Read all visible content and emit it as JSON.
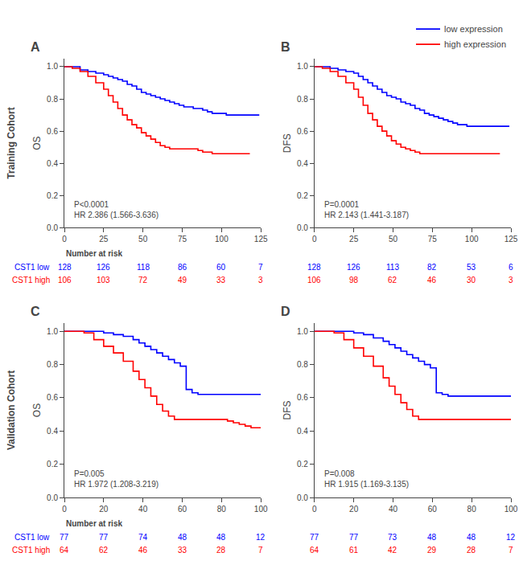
{
  "chart_data": [
    {
      "type": "step",
      "title": "A",
      "ylabel": "OS",
      "annotations": [
        "P<0.0001",
        "HR 2.386 (1.566-3.636)"
      ],
      "xlim": [
        0,
        125
      ],
      "xticks": [
        0,
        25,
        50,
        75,
        100,
        125
      ],
      "ylim": [
        0.0,
        1.05
      ],
      "yticks": [
        {
          "value": 0.0,
          "label": "0.0"
        },
        0.2,
        0.4,
        0.6,
        0.8,
        {
          "value": 1.0,
          "label": "1.0"
        }
      ],
      "grid": false,
      "series": [
        {
          "color": "#0000FF",
          "x": [
            0,
            5,
            10,
            15,
            20,
            25,
            28,
            31,
            34,
            37,
            40,
            43,
            46,
            49,
            52,
            55,
            58,
            61,
            64,
            67,
            70,
            73,
            76,
            79,
            82,
            85,
            88,
            91,
            94,
            97,
            100,
            103,
            106,
            109,
            112,
            115,
            118,
            121,
            124
          ],
          "values": [
            1.0,
            1.0,
            0.98,
            0.97,
            0.96,
            0.95,
            0.94,
            0.93,
            0.92,
            0.91,
            0.89,
            0.88,
            0.86,
            0.84,
            0.83,
            0.82,
            0.81,
            0.8,
            0.79,
            0.78,
            0.77,
            0.76,
            0.75,
            0.75,
            0.74,
            0.74,
            0.73,
            0.72,
            0.71,
            0.71,
            0.71,
            0.7,
            0.7,
            0.7,
            0.7,
            0.7,
            0.7,
            0.7,
            0.7
          ]
        },
        {
          "color": "#FF0000",
          "x": [
            0,
            5,
            10,
            15,
            20,
            25,
            28,
            31,
            34,
            37,
            40,
            43,
            46,
            49,
            52,
            55,
            58,
            61,
            64,
            67,
            70,
            73,
            76,
            79,
            82,
            85,
            88,
            91,
            94,
            97,
            100,
            103,
            106,
            109,
            112,
            115,
            118
          ],
          "values": [
            1.0,
            0.99,
            0.97,
            0.94,
            0.9,
            0.86,
            0.82,
            0.78,
            0.74,
            0.7,
            0.67,
            0.64,
            0.62,
            0.59,
            0.57,
            0.55,
            0.53,
            0.51,
            0.5,
            0.49,
            0.49,
            0.49,
            0.49,
            0.49,
            0.49,
            0.48,
            0.47,
            0.47,
            0.46,
            0.46,
            0.46,
            0.46,
            0.46,
            0.46,
            0.46,
            0.46,
            0.46
          ]
        }
      ],
      "risk_table": {
        "label": "Number at risk",
        "rows": [
          {
            "name": "CST1 low",
            "color": "#0000FF",
            "values": [
              128,
              126,
              118,
              86,
              60,
              7
            ]
          },
          {
            "name": "CST1 high",
            "color": "#FF0000",
            "values": [
              106,
              103,
              72,
              49,
              33,
              3
            ]
          }
        ]
      }
    },
    {
      "type": "step",
      "title": "B",
      "ylabel": "DFS",
      "annotations": [
        "P=0.0001",
        "HR 2.143 (1.441-3.187)"
      ],
      "xlim": [
        0,
        125
      ],
      "xticks": [
        0,
        25,
        50,
        75,
        100,
        125
      ],
      "ylim": [
        0.0,
        1.05
      ],
      "yticks": [
        {
          "value": 0.0,
          "label": "0.0"
        },
        0.2,
        0.4,
        0.6,
        0.8,
        {
          "value": 1.0,
          "label": "1.0"
        }
      ],
      "grid": false,
      "legend": "upper right",
      "series": [
        {
          "name": "low expression",
          "color": "#0000FF",
          "x": [
            0,
            5,
            10,
            15,
            20,
            25,
            28,
            31,
            34,
            37,
            40,
            43,
            46,
            49,
            52,
            55,
            58,
            61,
            64,
            67,
            70,
            73,
            76,
            79,
            82,
            85,
            88,
            91,
            94,
            97,
            100,
            103,
            106,
            109,
            112,
            115,
            118,
            121,
            124
          ],
          "values": [
            1.0,
            1.0,
            0.99,
            0.98,
            0.97,
            0.96,
            0.94,
            0.92,
            0.9,
            0.88,
            0.86,
            0.84,
            0.82,
            0.81,
            0.8,
            0.78,
            0.77,
            0.76,
            0.74,
            0.73,
            0.71,
            0.7,
            0.69,
            0.68,
            0.67,
            0.66,
            0.65,
            0.64,
            0.64,
            0.63,
            0.63,
            0.63,
            0.63,
            0.63,
            0.63,
            0.63,
            0.63,
            0.63,
            0.63
          ]
        },
        {
          "name": "high expression",
          "color": "#FF0000",
          "x": [
            0,
            5,
            10,
            15,
            20,
            25,
            28,
            31,
            34,
            37,
            40,
            43,
            46,
            49,
            52,
            55,
            58,
            61,
            64,
            67,
            70,
            73,
            76,
            79,
            82,
            85,
            88,
            91,
            94,
            97,
            100,
            103,
            106,
            109,
            112,
            115,
            118
          ],
          "values": [
            1.0,
            0.99,
            0.97,
            0.94,
            0.9,
            0.86,
            0.81,
            0.76,
            0.71,
            0.67,
            0.63,
            0.6,
            0.57,
            0.54,
            0.52,
            0.5,
            0.49,
            0.48,
            0.47,
            0.46,
            0.46,
            0.46,
            0.46,
            0.46,
            0.46,
            0.46,
            0.46,
            0.46,
            0.46,
            0.46,
            0.46,
            0.46,
            0.46,
            0.46,
            0.46,
            0.46,
            0.46
          ]
        }
      ],
      "risk_table": {
        "rows": [
          {
            "color": "#0000FF",
            "values": [
              128,
              126,
              113,
              82,
              53,
              6
            ]
          },
          {
            "color": "#FF0000",
            "values": [
              106,
              98,
              62,
              46,
              30,
              3
            ]
          }
        ]
      }
    },
    {
      "type": "step",
      "title": "C",
      "ylabel": "OS",
      "annotations": [
        "P=0.005",
        "HR 1.972 (1.208-3.219)"
      ],
      "xlim": [
        0,
        100
      ],
      "xticks": [
        0,
        20,
        40,
        60,
        80,
        100
      ],
      "ylim": [
        0.0,
        1.05
      ],
      "yticks": [
        {
          "value": 0.0,
          "label": "0.0"
        },
        0.2,
        0.4,
        0.6,
        0.8,
        {
          "value": 1.0,
          "label": "1.0"
        }
      ],
      "grid": false,
      "series": [
        {
          "color": "#0000FF",
          "x": [
            0,
            5,
            10,
            15,
            20,
            25,
            30,
            35,
            38,
            41,
            44,
            47,
            50,
            53,
            56,
            59,
            62,
            65,
            68,
            71,
            74,
            77,
            80,
            83,
            86,
            89,
            92,
            95,
            98,
            100
          ],
          "values": [
            1.0,
            1.0,
            1.0,
            1.0,
            0.99,
            0.98,
            0.97,
            0.95,
            0.93,
            0.91,
            0.89,
            0.87,
            0.85,
            0.83,
            0.81,
            0.79,
            0.65,
            0.63,
            0.62,
            0.62,
            0.62,
            0.62,
            0.62,
            0.62,
            0.62,
            0.62,
            0.62,
            0.62,
            0.62,
            0.62
          ]
        },
        {
          "color": "#FF0000",
          "x": [
            0,
            5,
            10,
            15,
            20,
            25,
            30,
            35,
            38,
            41,
            44,
            47,
            50,
            53,
            56,
            59,
            62,
            65,
            68,
            71,
            74,
            77,
            80,
            83,
            86,
            89,
            92,
            95,
            98,
            100
          ],
          "values": [
            1.0,
            1.0,
            0.99,
            0.95,
            0.91,
            0.87,
            0.82,
            0.76,
            0.71,
            0.66,
            0.61,
            0.56,
            0.52,
            0.49,
            0.47,
            0.47,
            0.47,
            0.47,
            0.47,
            0.47,
            0.47,
            0.47,
            0.47,
            0.46,
            0.45,
            0.44,
            0.43,
            0.42,
            0.42,
            0.42
          ]
        }
      ],
      "risk_table": {
        "label": "Number at risk",
        "rows": [
          {
            "name": "CST1 low",
            "color": "#0000FF",
            "values": [
              77,
              77,
              74,
              48,
              48,
              12
            ]
          },
          {
            "name": "CST1 high",
            "color": "#FF0000",
            "values": [
              64,
              62,
              46,
              33,
              28,
              7
            ]
          }
        ]
      }
    },
    {
      "type": "step",
      "title": "D",
      "ylabel": "DFS",
      "annotations": [
        "P=0.008",
        "HR 1.915 (1.169-3.135)"
      ],
      "xlim": [
        0,
        100
      ],
      "xticks": [
        0,
        20,
        40,
        60,
        80,
        100
      ],
      "ylim": [
        0.0,
        1.05
      ],
      "yticks": [
        {
          "value": 0.0,
          "label": "0.0"
        },
        0.2,
        0.4,
        0.6,
        0.8,
        {
          "value": 1.0,
          "label": "1.0"
        }
      ],
      "grid": false,
      "series": [
        {
          "color": "#0000FF",
          "x": [
            0,
            5,
            10,
            15,
            20,
            25,
            30,
            35,
            38,
            41,
            44,
            47,
            50,
            53,
            56,
            59,
            62,
            65,
            68,
            71,
            74,
            77,
            80,
            83,
            86,
            89,
            92,
            95,
            98,
            100
          ],
          "values": [
            1.0,
            1.0,
            1.0,
            1.0,
            0.99,
            0.98,
            0.96,
            0.94,
            0.92,
            0.9,
            0.88,
            0.86,
            0.84,
            0.82,
            0.8,
            0.78,
            0.63,
            0.62,
            0.61,
            0.61,
            0.61,
            0.61,
            0.61,
            0.61,
            0.61,
            0.61,
            0.61,
            0.61,
            0.61,
            0.61
          ]
        },
        {
          "color": "#FF0000",
          "x": [
            0,
            5,
            10,
            15,
            20,
            25,
            30,
            35,
            38,
            41,
            44,
            47,
            50,
            53,
            56,
            59,
            62,
            65,
            68,
            71,
            74,
            77,
            80,
            83,
            86,
            89,
            92,
            95,
            98,
            100
          ],
          "values": [
            1.0,
            1.0,
            0.99,
            0.95,
            0.9,
            0.85,
            0.79,
            0.72,
            0.67,
            0.62,
            0.57,
            0.53,
            0.49,
            0.47,
            0.47,
            0.47,
            0.47,
            0.47,
            0.47,
            0.47,
            0.47,
            0.47,
            0.47,
            0.47,
            0.47,
            0.47,
            0.47,
            0.47,
            0.47,
            0.47
          ]
        }
      ],
      "risk_table": {
        "rows": [
          {
            "color": "#0000FF",
            "values": [
              77,
              77,
              73,
              48,
              48,
              12
            ]
          },
          {
            "color": "#FF0000",
            "values": [
              64,
              61,
              42,
              29,
              28,
              7
            ]
          }
        ]
      }
    }
  ],
  "row_labels": [
    "Training Cohort",
    "Validation Cohort"
  ]
}
